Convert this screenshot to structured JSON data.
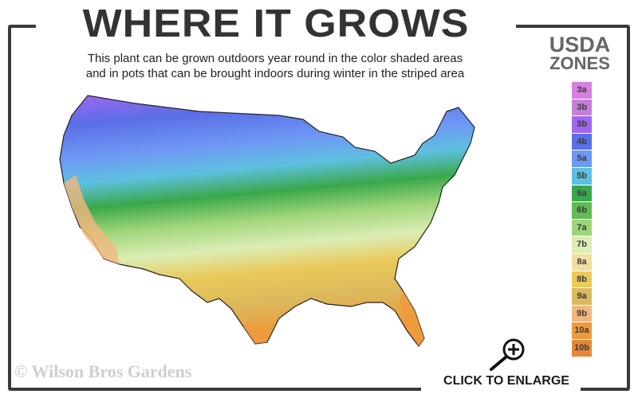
{
  "header": {
    "title": "WHERE IT GROWS",
    "subtitle_line1": "This plant can be grown outdoors year round in the color shaded areas",
    "subtitle_line2": "and in pots that can be brought indoors during winter in the striped area"
  },
  "legend": {
    "title_line1": "USDA",
    "title_line2": "ZONES",
    "zones": [
      {
        "label": "3a",
        "color": "#d67fe0"
      },
      {
        "label": "3b",
        "color": "#c57fd9"
      },
      {
        "label": "3b",
        "color": "#a066f0"
      },
      {
        "label": "4b",
        "color": "#5a6fe6"
      },
      {
        "label": "5a",
        "color": "#6e98f5"
      },
      {
        "label": "5b",
        "color": "#5ec0e0"
      },
      {
        "label": "6a",
        "color": "#3aa84a"
      },
      {
        "label": "6b",
        "color": "#62bb52"
      },
      {
        "label": "7a",
        "color": "#9fd57a"
      },
      {
        "label": "7b",
        "color": "#dcedb4"
      },
      {
        "label": "8a",
        "color": "#efe0a2"
      },
      {
        "label": "8b",
        "color": "#e9c95a"
      },
      {
        "label": "9a",
        "color": "#dbb95c"
      },
      {
        "label": "9b",
        "color": "#f2b77e"
      },
      {
        "label": "10a",
        "color": "#ee9a3c"
      },
      {
        "label": "10b",
        "color": "#e6883a"
      }
    ]
  },
  "footer": {
    "copyright": "© Wilson Bros Gardens",
    "enlarge_label": "CLICK TO ENLARGE"
  }
}
